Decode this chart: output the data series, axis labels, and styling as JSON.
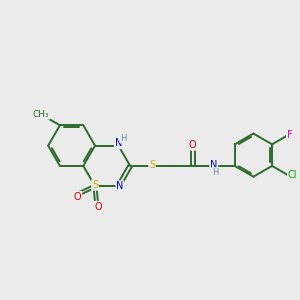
{
  "background_color": "#ebebeb",
  "bond_color": "#2d6b2d",
  "atom_colors": {
    "S": "#ccaa00",
    "N": "#0000cc",
    "O": "#cc0000",
    "Cl": "#00aa00",
    "F": "#cc00cc",
    "H": "#6688aa",
    "C": "#2d6b2d"
  },
  "figsize": [
    3.0,
    3.0
  ],
  "dpi": 100,
  "lw": 1.4,
  "fs": 7.0
}
